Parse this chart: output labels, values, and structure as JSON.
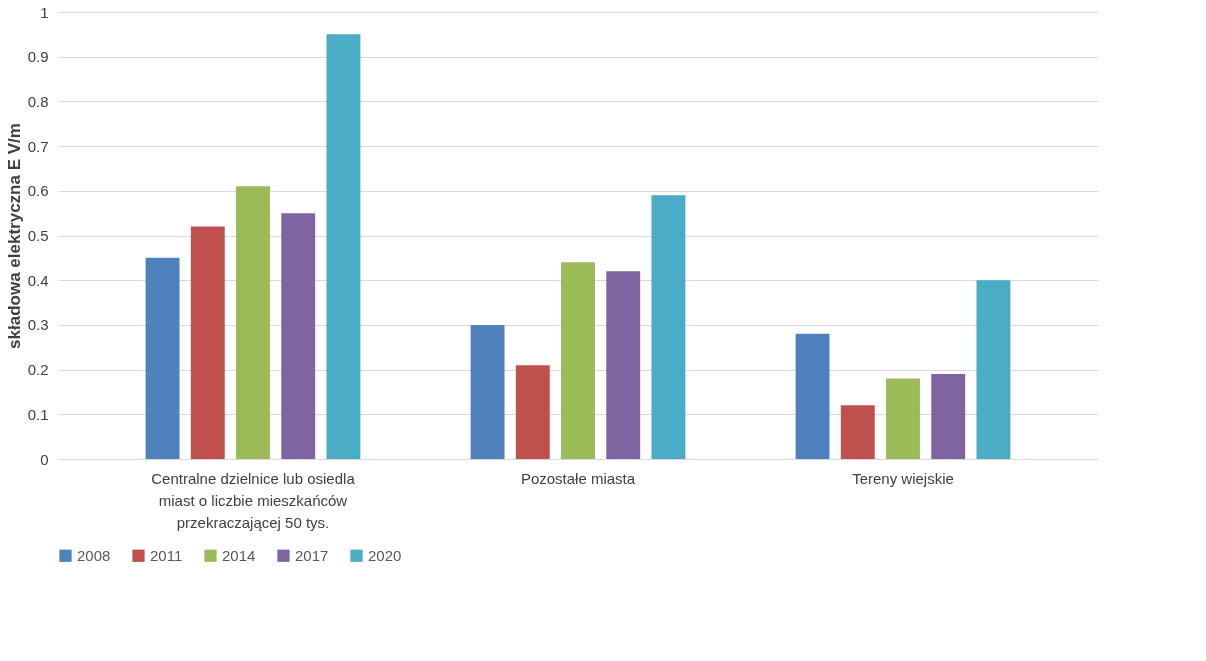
{
  "chart_data": {
    "type": "bar",
    "ylabel": "składowa elektryczna E V/m",
    "categories": [
      "Centralne dzielnice lub osiedla miast o liczbie mieszkańców przekraczającej 50 tys.",
      "Pozostałe miasta",
      "Tereny wiejskie"
    ],
    "series": [
      {
        "name": "2008",
        "color": "#4f81bd",
        "values": [
          0.45,
          0.3,
          0.28
        ]
      },
      {
        "name": "2011",
        "color": "#c0504d",
        "values": [
          0.52,
          0.21,
          0.12
        ]
      },
      {
        "name": "2014",
        "color": "#9bbb59",
        "values": [
          0.61,
          0.44,
          0.18
        ]
      },
      {
        "name": "2017",
        "color": "#8064a2",
        "values": [
          0.55,
          0.42,
          0.19
        ]
      },
      {
        "name": "2020",
        "color": "#4bacc6",
        "values": [
          0.95,
          0.59,
          0.4
        ]
      }
    ],
    "ylim": [
      0,
      1
    ],
    "yticks": [
      0,
      0.1,
      0.2,
      0.3,
      0.4,
      0.5,
      0.6,
      0.7,
      0.8,
      0.9,
      1
    ],
    "grid": "y",
    "legend": "bottom"
  }
}
